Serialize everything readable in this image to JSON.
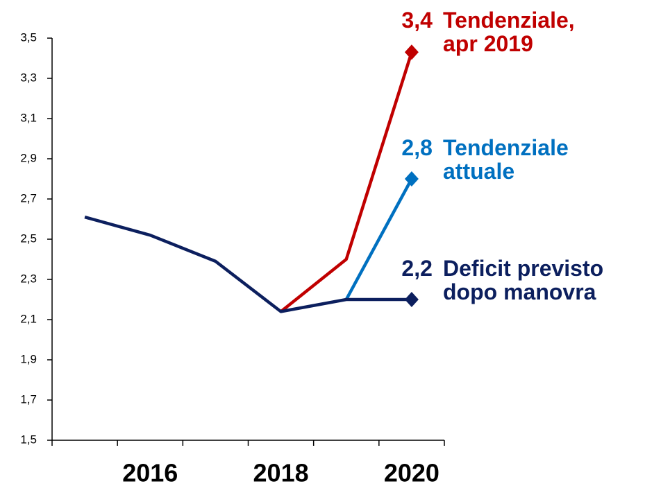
{
  "chart_data": {
    "type": "line",
    "categories": [
      null,
      "2016",
      null,
      "2018",
      null,
      "2020"
    ],
    "ylim": [
      1.5,
      3.5
    ],
    "yticks": [
      {
        "value": 1.5,
        "label": "1,5"
      },
      {
        "value": 1.7,
        "label": "1,7"
      },
      {
        "value": 1.9,
        "label": "1,9"
      },
      {
        "value": 2.1,
        "label": "2,1"
      },
      {
        "value": 2.3,
        "label": "2,3"
      },
      {
        "value": 2.5,
        "label": "2,5"
      },
      {
        "value": 2.7,
        "label": "2,7"
      },
      {
        "value": 2.9,
        "label": "2,9"
      },
      {
        "value": 3.1,
        "label": "3,1"
      },
      {
        "value": 3.3,
        "label": "3,3"
      },
      {
        "value": 3.5,
        "label": "3,5"
      }
    ],
    "grid": false,
    "series": [
      {
        "name": "Tendenziale, apr 2019",
        "color": "#c00000",
        "values": [
          null,
          null,
          null,
          2.14,
          2.4,
          3.43
        ],
        "value_labels": [
          null,
          null,
          null,
          null,
          null,
          "3,4"
        ]
      },
      {
        "name": "Tendenziale attuale",
        "color": "#0070c0",
        "values": [
          null,
          null,
          null,
          null,
          2.2,
          2.8
        ],
        "value_labels": [
          null,
          null,
          null,
          null,
          null,
          "2,8"
        ]
      },
      {
        "name": "Deficit previsto dopo manovra",
        "color": "#0c1f5e",
        "values": [
          2.61,
          2.52,
          2.39,
          2.14,
          2.2,
          2.2
        ],
        "value_labels": [
          null,
          null,
          null,
          null,
          null,
          "2,2"
        ]
      }
    ]
  }
}
